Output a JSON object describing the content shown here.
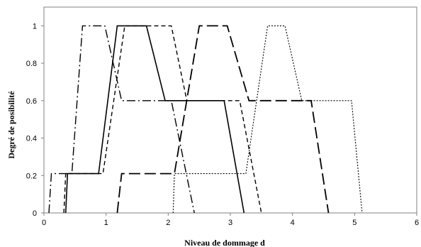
{
  "chart_data": {
    "type": "line",
    "xlabel": "Niveau de dommage d",
    "ylabel": "Degré de posibilité",
    "xlim": [
      0,
      6
    ],
    "ylim": [
      0,
      1.1
    ],
    "xticks": [
      0,
      1,
      2,
      3,
      4,
      5,
      6
    ],
    "yticks": [
      0,
      0.2,
      0.4,
      0.6,
      0.8,
      1
    ],
    "ytick_labels": [
      "0",
      "0.2",
      "0.4",
      "0.6",
      "0.8",
      "1"
    ],
    "grid": false,
    "legend": "none",
    "series": [
      {
        "style": "dash-dot",
        "color": "#000000",
        "x": [
          0.08,
          0.12,
          0.45,
          0.62,
          0.98,
          1.25,
          1.9,
          2.05,
          2.42
        ],
        "y": [
          0,
          0.21,
          0.21,
          1,
          1,
          0.6,
          0.6,
          0.6,
          0
        ]
      },
      {
        "style": "solid",
        "color": "#000000",
        "x": [
          0.35,
          0.38,
          0.88,
          1.18,
          1.65,
          1.95,
          2.9,
          3.22
        ],
        "y": [
          0,
          0.21,
          0.21,
          1,
          1,
          0.6,
          0.6,
          0
        ]
      },
      {
        "style": "short-dash",
        "color": "#000000",
        "x": [
          0.32,
          0.35,
          0.95,
          1.3,
          2.05,
          2.3,
          3.15,
          3.5
        ],
        "y": [
          0,
          0.21,
          0.21,
          1,
          1,
          0.6,
          0.6,
          0
        ]
      },
      {
        "style": "long-dash",
        "color": "#000000",
        "x": [
          1.18,
          1.25,
          2.1,
          2.5,
          2.95,
          3.3,
          4.3,
          4.58
        ],
        "y": [
          0,
          0.21,
          0.21,
          1,
          1,
          0.6,
          0.6,
          0
        ]
      },
      {
        "style": "dotted",
        "color": "#000000",
        "x": [
          2.08,
          2.1,
          3.25,
          3.6,
          3.88,
          4.15,
          4.95,
          5.12
        ],
        "y": [
          0,
          0.21,
          0.21,
          1,
          1,
          0.6,
          0.6,
          0
        ]
      }
    ]
  }
}
